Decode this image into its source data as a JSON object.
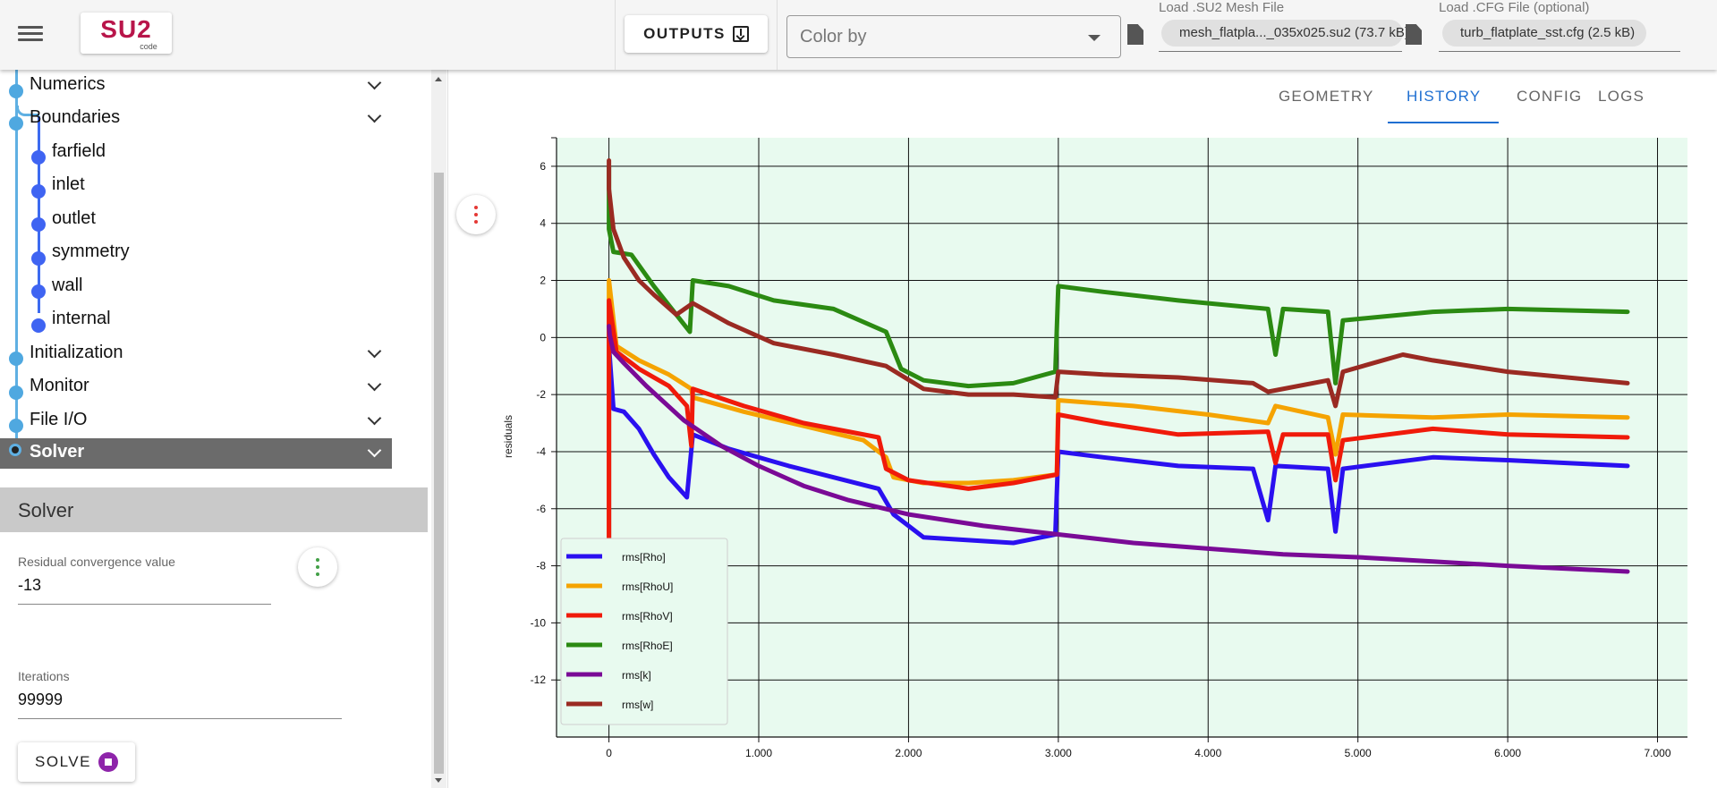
{
  "header": {
    "logo_text": "SU2",
    "logo_sub": "code",
    "outputs_label": "OUTPUTS",
    "color_by_placeholder": "Color by",
    "mesh_label": "Load .SU2 Mesh File",
    "mesh_file": "mesh_flatpla..._035x025.su2 (73.7 kB)",
    "cfg_label": "Load .CFG File (optional)",
    "cfg_file": "turb_flatplate_sst.cfg (2.5 kB)"
  },
  "sidebar": {
    "sections": [
      {
        "label": "Numerics"
      },
      {
        "label": "Boundaries"
      },
      {
        "label": "Initialization"
      },
      {
        "label": "Monitor"
      },
      {
        "label": "File I/O"
      },
      {
        "label": "Solver"
      }
    ],
    "boundaries": [
      "farfield",
      "inlet",
      "outlet",
      "symmetry",
      "wall",
      "internal"
    ]
  },
  "panel": {
    "title": "Solver",
    "residual_label": "Residual convergence value",
    "residual_value": "-13",
    "iterations_label": "Iterations",
    "iterations_value": "99999",
    "solve_label": "SOLVE"
  },
  "tabs": [
    "GEOMETRY",
    "HISTORY",
    "CONFIG",
    "LOGS"
  ],
  "active_tab": "HISTORY",
  "chart_data": {
    "type": "line",
    "ylabel": "residuals",
    "xlabel": "",
    "xlim": [
      -350,
      7200
    ],
    "ylim": [
      -14,
      7
    ],
    "xticks": [
      0,
      1000,
      2000,
      3000,
      4000,
      5000,
      6000,
      7000
    ],
    "xtick_labels": [
      "0",
      "1,000",
      "2,000",
      "3,000",
      "4,000",
      "5,000",
      "6,000",
      "7,000"
    ],
    "yticks": [
      6,
      4,
      2,
      0,
      -2,
      -4,
      -6,
      -8,
      -10,
      -12
    ],
    "grid": true,
    "background": "#e8faef",
    "legend_position": "bottom-left",
    "series": [
      {
        "name": "rms[Rho]",
        "color": "#2a10f0",
        "points": [
          [
            0,
            -7.5
          ],
          [
            0,
            -0.3
          ],
          [
            30,
            -2.5
          ],
          [
            100,
            -2.6
          ],
          [
            200,
            -3.2
          ],
          [
            300,
            -4.1
          ],
          [
            400,
            -4.9
          ],
          [
            520,
            -5.6
          ],
          [
            560,
            -3.4
          ],
          [
            800,
            -3.9
          ],
          [
            1200,
            -4.5
          ],
          [
            1500,
            -4.9
          ],
          [
            1800,
            -5.3
          ],
          [
            1900,
            -6.2
          ],
          [
            2000,
            -6.6
          ],
          [
            2100,
            -7.0
          ],
          [
            2400,
            -7.1
          ],
          [
            2700,
            -7.2
          ],
          [
            2980,
            -6.9
          ],
          [
            3000,
            -4.0
          ],
          [
            3300,
            -4.2
          ],
          [
            3800,
            -4.5
          ],
          [
            4300,
            -4.6
          ],
          [
            4400,
            -6.4
          ],
          [
            4450,
            -4.5
          ],
          [
            4800,
            -4.6
          ],
          [
            4850,
            -6.8
          ],
          [
            4900,
            -4.6
          ],
          [
            5500,
            -4.2
          ],
          [
            6000,
            -4.3
          ],
          [
            6800,
            -4.5
          ]
        ]
      },
      {
        "name": "rms[RhoU]",
        "color": "#f5a300",
        "points": [
          [
            0,
            -7.5
          ],
          [
            0,
            2.0
          ],
          [
            50,
            -0.3
          ],
          [
            200,
            -0.8
          ],
          [
            400,
            -1.3
          ],
          [
            550,
            -1.8
          ],
          [
            560,
            -2.1
          ],
          [
            900,
            -2.6
          ],
          [
            1300,
            -3.1
          ],
          [
            1700,
            -3.6
          ],
          [
            1850,
            -4.2
          ],
          [
            1900,
            -4.9
          ],
          [
            2100,
            -5.1
          ],
          [
            2400,
            -5.1
          ],
          [
            2700,
            -5.0
          ],
          [
            2990,
            -4.8
          ],
          [
            3000,
            -2.2
          ],
          [
            3500,
            -2.4
          ],
          [
            4000,
            -2.7
          ],
          [
            4400,
            -3.0
          ],
          [
            4450,
            -2.4
          ],
          [
            4800,
            -2.8
          ],
          [
            4850,
            -4.1
          ],
          [
            4900,
            -2.7
          ],
          [
            5500,
            -2.8
          ],
          [
            6000,
            -2.7
          ],
          [
            6800,
            -2.8
          ]
        ]
      },
      {
        "name": "rms[RhoV]",
        "color": "#f01a0a",
        "points": [
          [
            0,
            -7.5
          ],
          [
            0,
            1.3
          ],
          [
            50,
            -0.5
          ],
          [
            200,
            -1.1
          ],
          [
            400,
            -1.7
          ],
          [
            520,
            -2.4
          ],
          [
            550,
            -3.8
          ],
          [
            560,
            -1.8
          ],
          [
            900,
            -2.4
          ],
          [
            1300,
            -3.0
          ],
          [
            1800,
            -3.5
          ],
          [
            1850,
            -4.6
          ],
          [
            2000,
            -5.0
          ],
          [
            2400,
            -5.3
          ],
          [
            2700,
            -5.1
          ],
          [
            2990,
            -4.8
          ],
          [
            3000,
            -2.7
          ],
          [
            3300,
            -3.0
          ],
          [
            3800,
            -3.4
          ],
          [
            4400,
            -3.3
          ],
          [
            4450,
            -4.4
          ],
          [
            4500,
            -3.4
          ],
          [
            4800,
            -3.4
          ],
          [
            4850,
            -5.0
          ],
          [
            4900,
            -3.6
          ],
          [
            5500,
            -3.2
          ],
          [
            6000,
            -3.4
          ],
          [
            6800,
            -3.5
          ]
        ]
      },
      {
        "name": "rms[RhoE]",
        "color": "#2b8a12",
        "points": [
          [
            0,
            6.0
          ],
          [
            0,
            3.8
          ],
          [
            30,
            3.0
          ],
          [
            150,
            2.9
          ],
          [
            300,
            1.8
          ],
          [
            450,
            0.8
          ],
          [
            540,
            0.2
          ],
          [
            560,
            2.0
          ],
          [
            800,
            1.8
          ],
          [
            1100,
            1.3
          ],
          [
            1500,
            1.0
          ],
          [
            1850,
            0.2
          ],
          [
            1950,
            -1.1
          ],
          [
            2100,
            -1.5
          ],
          [
            2400,
            -1.7
          ],
          [
            2700,
            -1.6
          ],
          [
            2980,
            -1.2
          ],
          [
            3000,
            1.8
          ],
          [
            3300,
            1.6
          ],
          [
            3800,
            1.3
          ],
          [
            4400,
            1.0
          ],
          [
            4450,
            -0.6
          ],
          [
            4500,
            1.0
          ],
          [
            4800,
            0.9
          ],
          [
            4850,
            -1.6
          ],
          [
            4900,
            0.6
          ],
          [
            5500,
            0.9
          ],
          [
            6000,
            1.0
          ],
          [
            6800,
            0.9
          ]
        ]
      },
      {
        "name": "rms[k]",
        "color": "#7a0a96",
        "points": [
          [
            0,
            0.4
          ],
          [
            5,
            0.1
          ],
          [
            30,
            -0.5
          ],
          [
            100,
            -0.9
          ],
          [
            250,
            -1.7
          ],
          [
            500,
            -2.9
          ],
          [
            750,
            -3.8
          ],
          [
            1000,
            -4.5
          ],
          [
            1300,
            -5.2
          ],
          [
            1600,
            -5.7
          ],
          [
            2000,
            -6.2
          ],
          [
            2500,
            -6.6
          ],
          [
            3000,
            -6.9
          ],
          [
            3500,
            -7.2
          ],
          [
            4000,
            -7.4
          ],
          [
            4500,
            -7.6
          ],
          [
            5000,
            -7.7
          ],
          [
            5500,
            -7.85
          ],
          [
            6000,
            -8.0
          ],
          [
            6800,
            -8.2
          ]
        ]
      },
      {
        "name": "rms[w]",
        "color": "#9a2a22",
        "points": [
          [
            0,
            6.2
          ],
          [
            0,
            5.2
          ],
          [
            30,
            3.8
          ],
          [
            100,
            2.8
          ],
          [
            200,
            2.0
          ],
          [
            300,
            1.5
          ],
          [
            450,
            0.8
          ],
          [
            560,
            1.2
          ],
          [
            800,
            0.5
          ],
          [
            1100,
            -0.2
          ],
          [
            1500,
            -0.6
          ],
          [
            1850,
            -1.0
          ],
          [
            2100,
            -1.8
          ],
          [
            2400,
            -2.0
          ],
          [
            2700,
            -2.0
          ],
          [
            2980,
            -2.1
          ],
          [
            3000,
            -1.2
          ],
          [
            3300,
            -1.3
          ],
          [
            3800,
            -1.4
          ],
          [
            4300,
            -1.6
          ],
          [
            4400,
            -1.9
          ],
          [
            4800,
            -1.5
          ],
          [
            4850,
            -2.4
          ],
          [
            4900,
            -1.2
          ],
          [
            5300,
            -0.6
          ],
          [
            5500,
            -0.8
          ],
          [
            6000,
            -1.2
          ],
          [
            6800,
            -1.6
          ]
        ]
      }
    ]
  }
}
